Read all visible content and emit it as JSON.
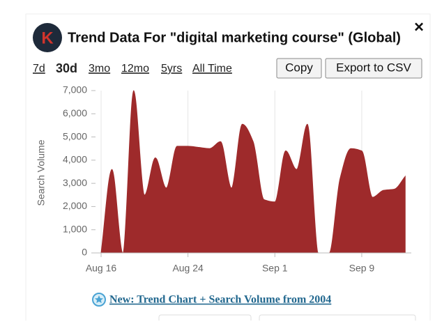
{
  "logo": "K",
  "header": {
    "title": "Trend Data For \"digital marketing course\" (Global)",
    "close": "×"
  },
  "tabs": [
    "7d",
    "30d",
    "3mo",
    "12mo",
    "5yrs",
    "All Time"
  ],
  "buttons": [
    "Copy",
    "Export to CSV"
  ],
  "chart_data": {
    "type": "area",
    "y_label": "Search Volume",
    "color": "#9e2a2b",
    "categories": [
      "Aug 16",
      null,
      null,
      null,
      null,
      null,
      null,
      null,
      "Aug 24",
      null,
      null,
      null,
      null,
      null,
      null,
      null,
      "Sep 1",
      null,
      null,
      null,
      null,
      null,
      null,
      null,
      "Sep 9",
      null,
      null,
      null,
      null
    ],
    "values": [
      0,
      3600,
      0,
      7000,
      2500,
      4100,
      2800,
      4600,
      4600,
      4550,
      4500,
      4800,
      2800,
      5550,
      4800,
      2300,
      2200,
      4400,
      3600,
      5550,
      0,
      0,
      3200,
      4500,
      4400,
      2400,
      2700,
      2750,
      3300
    ],
    "ylim": [
      0,
      7000
    ],
    "yticks": [
      0,
      {
        "value": 1000,
        "label": "1,000"
      },
      {
        "value": 2000,
        "label": "2,000"
      },
      {
        "value": 3000,
        "label": "3,000"
      },
      {
        "value": 4000,
        "label": "4,000"
      },
      {
        "value": 5000,
        "label": "5,000"
      },
      {
        "value": 6000,
        "label": "6,000"
      },
      {
        "value": 7000,
        "label": "7,000"
      }
    ]
  },
  "footer_link": "New: Trend Chart + Search Volume from 2004"
}
